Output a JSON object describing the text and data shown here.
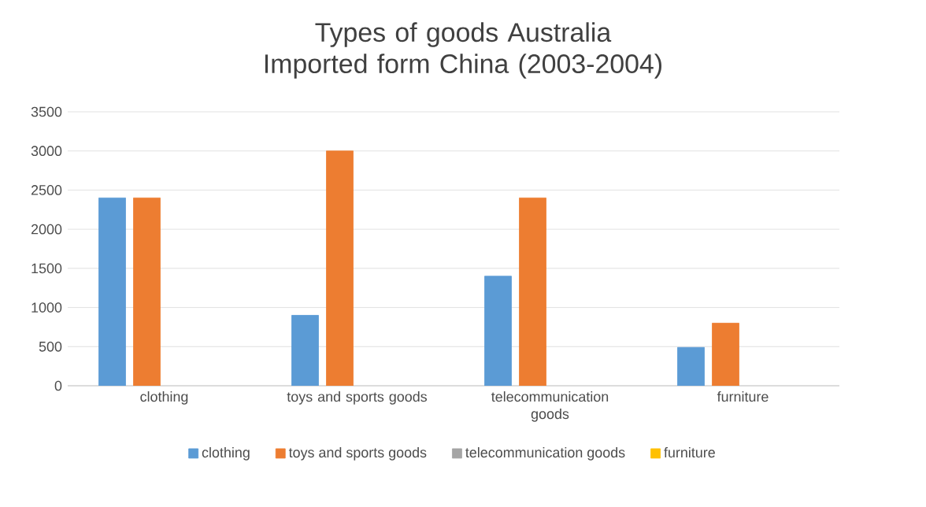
{
  "chart_data": {
    "type": "bar",
    "title": "Types of goods Australia Imported form China (2003-2004)",
    "categories": [
      "clothing",
      "toys and sports goods",
      "telecommunication goods",
      "furniture"
    ],
    "series": [
      {
        "name": "clothing",
        "color": "#5b9bd5",
        "values": [
          2400,
          900,
          1400,
          490
        ]
      },
      {
        "name": "toys and sports goods",
        "color": "#ed7d31",
        "values": [
          2400,
          3000,
          2400,
          800
        ]
      },
      {
        "name": "telecommunication goods",
        "color": "#a5a5a5",
        "values": [
          null,
          null,
          null,
          null
        ]
      },
      {
        "name": "furniture",
        "color": "#ffc000",
        "values": [
          null,
          null,
          null,
          null
        ]
      }
    ],
    "ylim": [
      0,
      3500
    ],
    "yticks": [
      0,
      500,
      1000,
      1500,
      2000,
      2500,
      3000,
      3500
    ],
    "grid": "y",
    "legend": "bottom"
  }
}
